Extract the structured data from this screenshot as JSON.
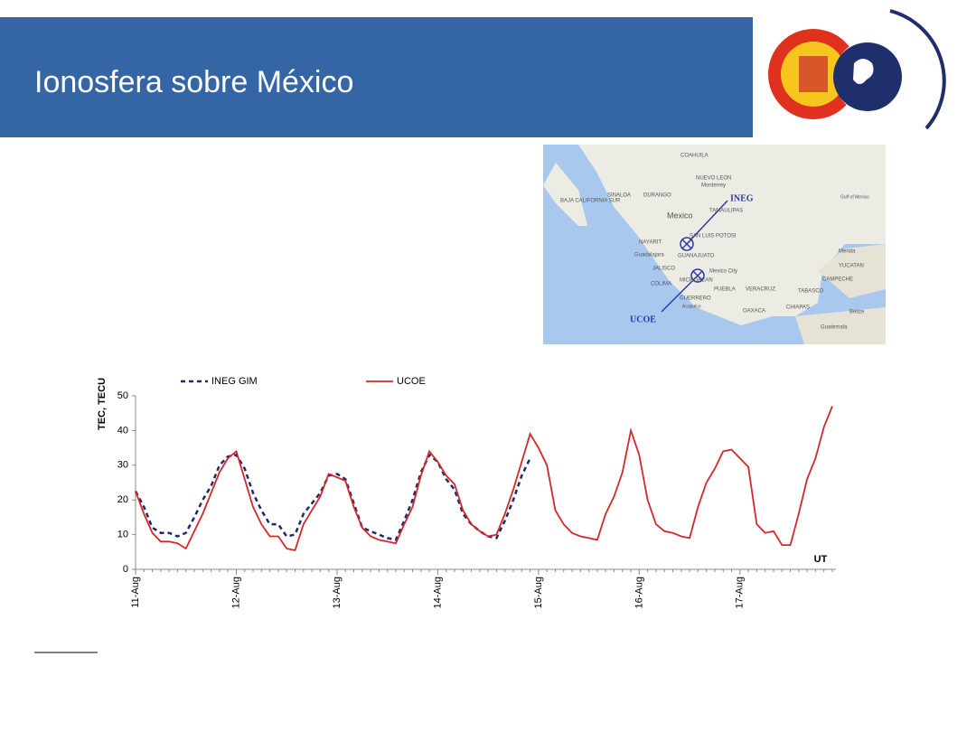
{
  "header": {
    "title": "Ionosfera sobre México"
  },
  "map": {
    "labels": [
      "COAHUILA",
      "NUEVO LEON",
      "Monterrey",
      "Gulf of Mexico",
      "BAJA CALIFORNIA SUR",
      "SINALOA",
      "DURANGO",
      "TAMAULIPAS",
      "Mexico",
      "SAN LUIS POTOSI",
      "NAYARIT",
      "Guadalajara",
      "GUANAJUATO",
      "JALISCO",
      "Mexico City",
      "COLIMA",
      "MICHOACAN",
      "PUEBLA",
      "VERACRUZ",
      "TABASCO",
      "GUERRERO",
      "Acapulco",
      "OAXACA",
      "CHIAPAS",
      "Merida",
      "YUCATAN",
      "CAMPECHE",
      "Belize",
      "Guatemala",
      "INEG",
      "UCOE"
    ]
  },
  "chart_data": {
    "type": "line",
    "y_label": "TEC, TECU",
    "x_label": "UT",
    "categories": [
      "11-Aug",
      null,
      null,
      null,
      null,
      null,
      null,
      null,
      null,
      null,
      null,
      null,
      "12-Aug",
      null,
      null,
      null,
      null,
      null,
      null,
      null,
      null,
      null,
      null,
      null,
      "13-Aug",
      null,
      null,
      null,
      null,
      null,
      null,
      null,
      null,
      null,
      null,
      null,
      "14-Aug",
      null,
      null,
      null,
      null,
      null,
      null,
      null,
      null,
      null,
      null,
      null,
      "15-Aug",
      null,
      null,
      null,
      null,
      null,
      null,
      null,
      null,
      null,
      null,
      null,
      "16-Aug",
      null,
      null,
      null,
      null,
      null,
      null,
      null,
      null,
      null,
      null,
      null,
      "17-Aug",
      null,
      null,
      null,
      null,
      null,
      null,
      null,
      null,
      null,
      null,
      null
    ],
    "series": [
      {
        "name": "INEG GIM",
        "color": "#1f2a6b",
        "dashed": true,
        "values": [
          22.5,
          18,
          12,
          10.5,
          10.5,
          9.5,
          10.5,
          15,
          20,
          24,
          30,
          32.5,
          33,
          29,
          22,
          17,
          13,
          13,
          9.5,
          10,
          16,
          19,
          22,
          27,
          27.5,
          26,
          19,
          12,
          11,
          10,
          9,
          8.5,
          14,
          20,
          28,
          33,
          31,
          26,
          23,
          16,
          13,
          11,
          9.5,
          9,
          14,
          20,
          27,
          32,
          null,
          null,
          null,
          null,
          null,
          null,
          null,
          null,
          null,
          null,
          null,
          null,
          null,
          null,
          null,
          null,
          null,
          null,
          null,
          null,
          null,
          null,
          null,
          null,
          null,
          null,
          null,
          null,
          null,
          null,
          null,
          null,
          null,
          null,
          null,
          null
        ]
      },
      {
        "name": "UCOE",
        "color": "#d62728",
        "dashed": false,
        "values": [
          22.5,
          16,
          10.5,
          8,
          8,
          7.5,
          6,
          11,
          16,
          22,
          28,
          32,
          34,
          26,
          18,
          13,
          9.5,
          9.5,
          6,
          5.5,
          13,
          17,
          21,
          27.5,
          26.5,
          25.5,
          18,
          12,
          9.5,
          8.5,
          8,
          7.5,
          13,
          18,
          27,
          34,
          31,
          27,
          24.5,
          17,
          13,
          11,
          9.5,
          10,
          16,
          23,
          31,
          39,
          35,
          30,
          17,
          13,
          10.5,
          9.5,
          9,
          8.5,
          16,
          21,
          28,
          40,
          33,
          20,
          13,
          11,
          10.5,
          9.5,
          9,
          18,
          25,
          29,
          34,
          34.5,
          32,
          29.5,
          13,
          10.5,
          11,
          7,
          7,
          16,
          26,
          32,
          41,
          47
        ]
      }
    ],
    "ylim": [
      0,
      50
    ],
    "yticks": [
      0,
      10,
      20,
      30,
      40,
      50
    ],
    "grid": false
  }
}
